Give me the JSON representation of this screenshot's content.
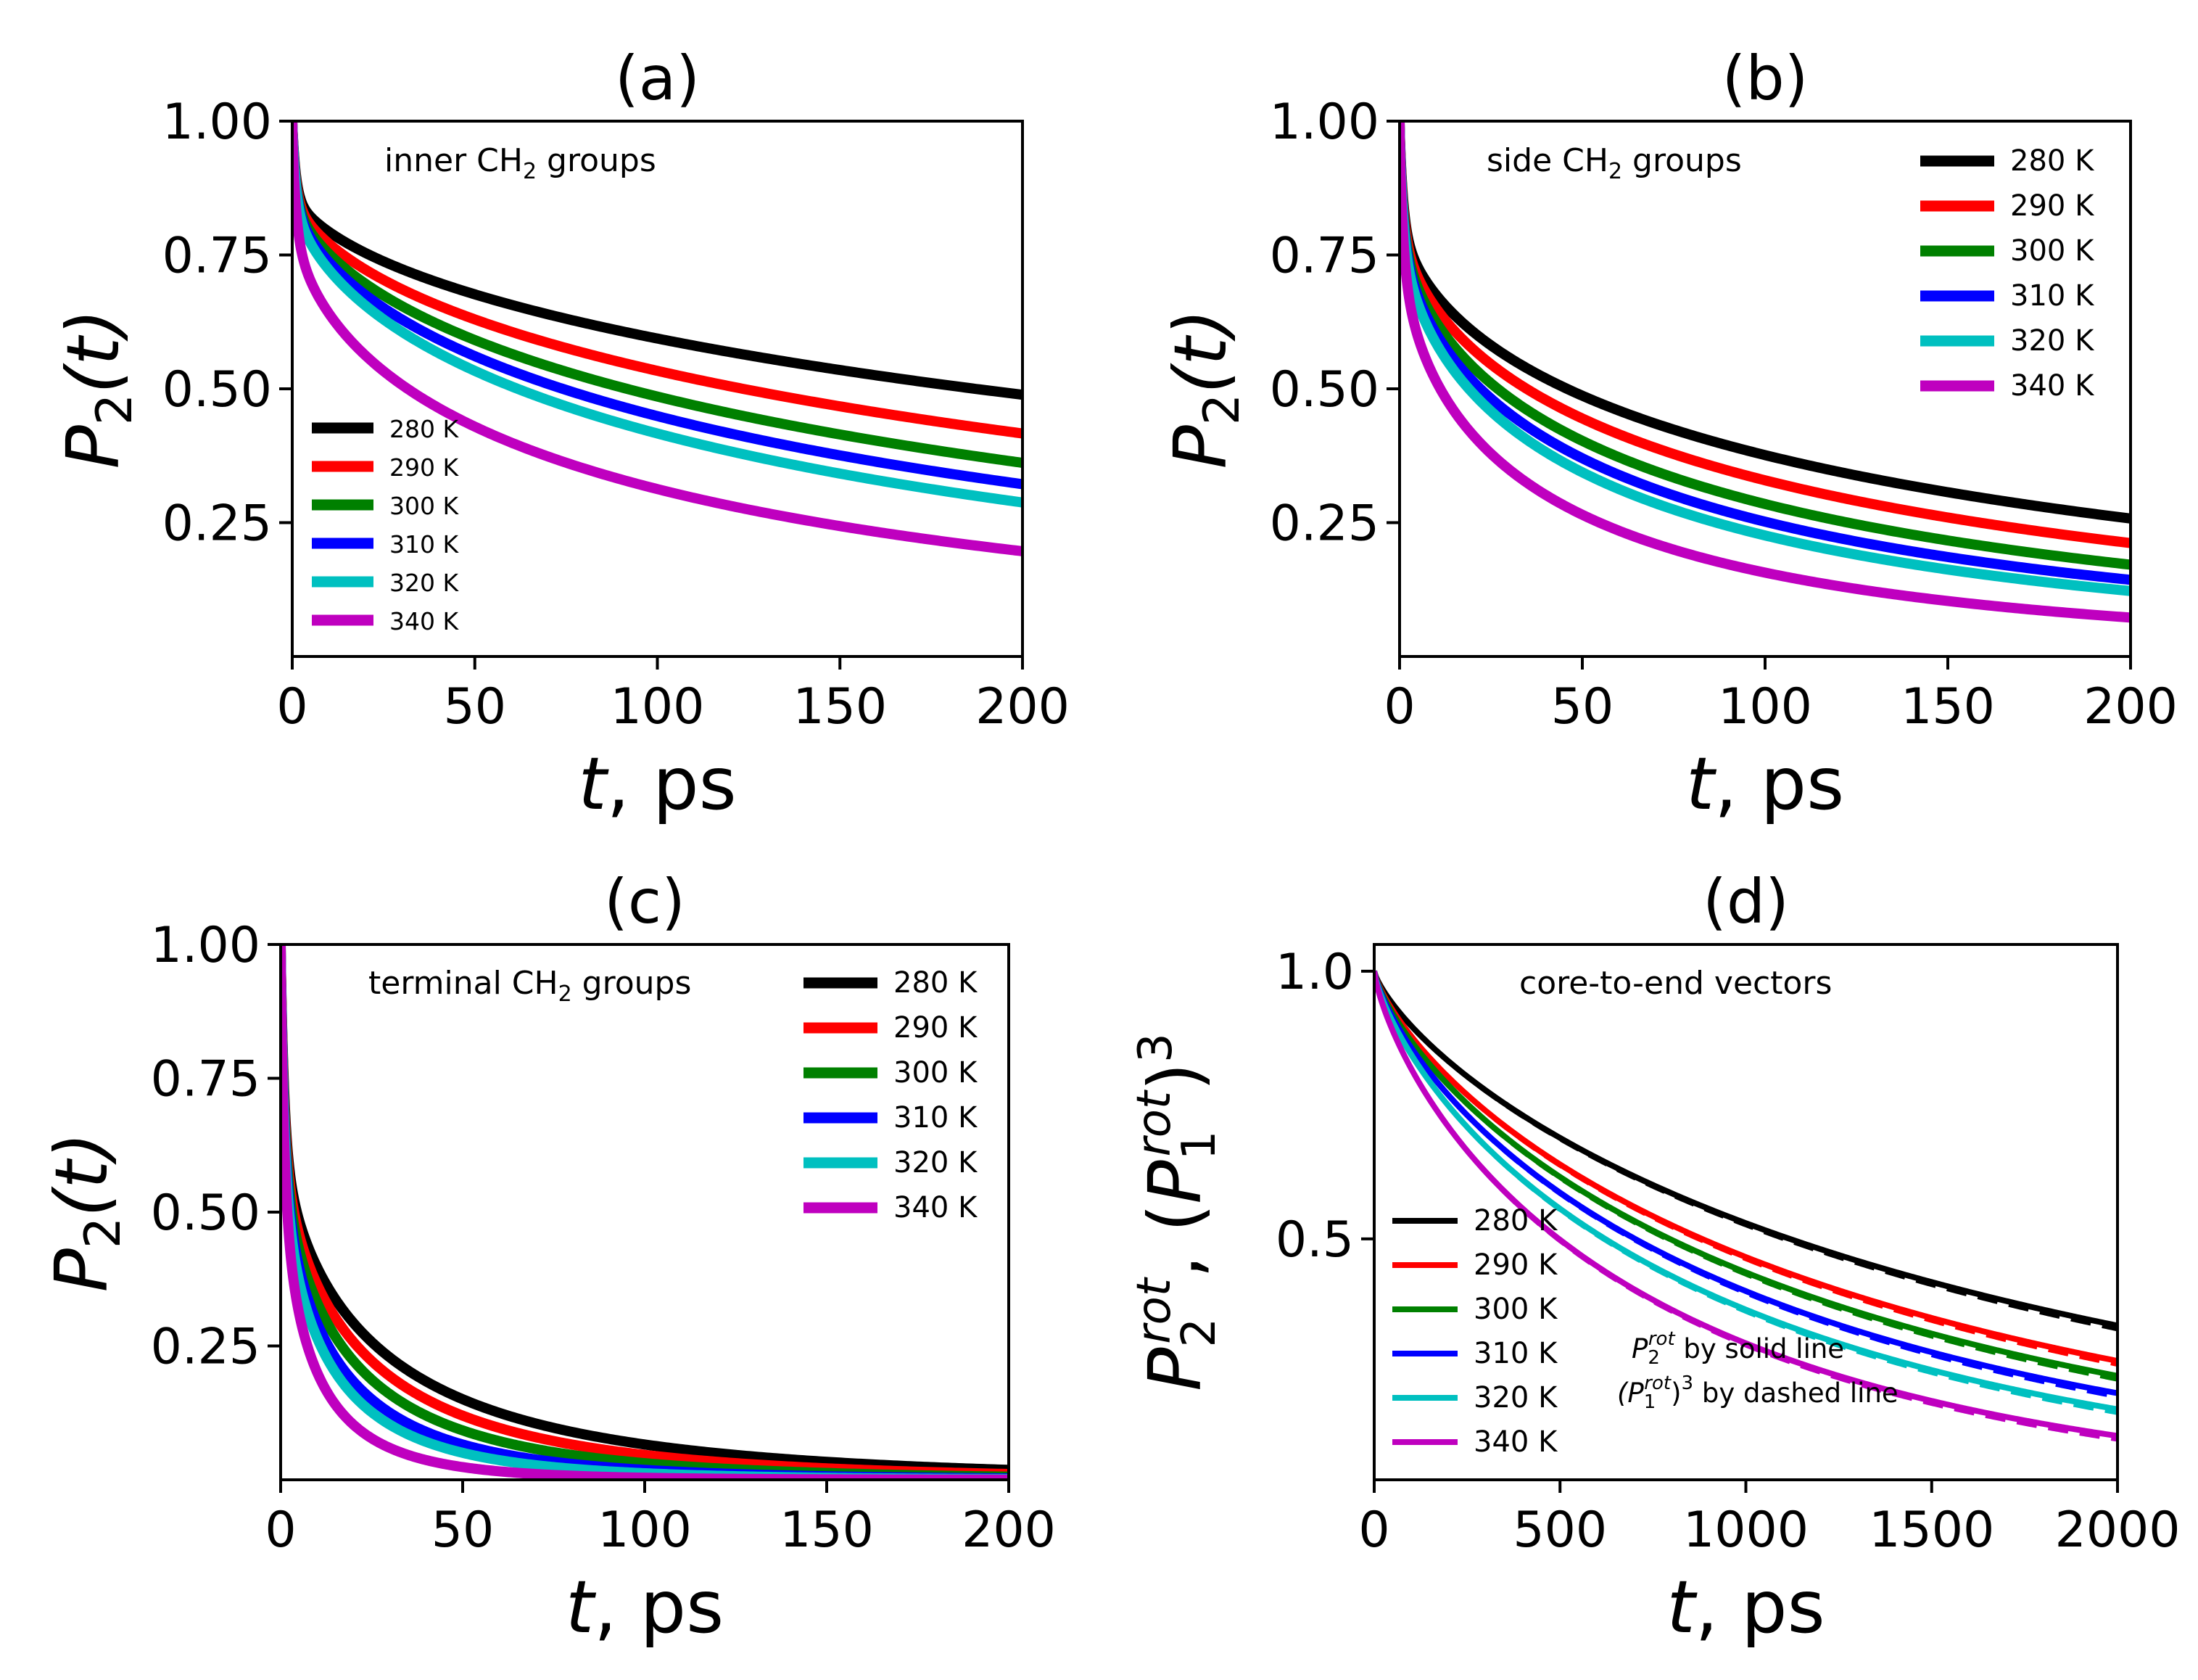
{
  "chart_data": [
    {
      "type": "line",
      "panel": "(a)",
      "title": "(a)",
      "annotation": {
        "prefix": "inner CH",
        "sub": "2",
        "suffix": " groups"
      },
      "xlabel": {
        "var": "t",
        "rest": ", ps"
      },
      "ylabel": {
        "main": "P",
        "sub": "2",
        "paren": "(t)"
      },
      "xlim": [
        0,
        200
      ],
      "ylim": [
        0.0,
        1.0
      ],
      "xticks": [
        0,
        50,
        100,
        150,
        200
      ],
      "xtick_labels": [
        "0",
        "50",
        "100",
        "150",
        "200"
      ],
      "yticks": [
        0.25,
        0.5,
        0.75,
        1.0
      ],
      "ytick_labels": [
        "0.25",
        "0.50",
        "0.75",
        "1.00"
      ],
      "legend_position": "lower-left",
      "series": [
        {
          "name": "280 K",
          "color": "#000000",
          "model": {
            "a": 0.12,
            "ta": 1.0,
            "b": 0.88,
            "tb": 500,
            "beta": 0.58
          }
        },
        {
          "name": "290 K",
          "color": "#ff0000",
          "model": {
            "a": 0.12,
            "ta": 1.0,
            "b": 0.88,
            "tb": 330,
            "beta": 0.58
          }
        },
        {
          "name": "300 K",
          "color": "#008000",
          "model": {
            "a": 0.12,
            "ta": 1.0,
            "b": 0.88,
            "tb": 245,
            "beta": 0.58
          }
        },
        {
          "name": "310 K",
          "color": "#0000ff",
          "model": {
            "a": 0.12,
            "ta": 1.0,
            "b": 0.88,
            "tb": 198,
            "beta": 0.58
          }
        },
        {
          "name": "320 K",
          "color": "#00c0c0",
          "model": {
            "a": 0.12,
            "ta": 1.0,
            "b": 0.88,
            "tb": 165,
            "beta": 0.58
          }
        },
        {
          "name": "340 K",
          "color": "#bf00bf",
          "model": {
            "a": 0.15,
            "ta": 1.0,
            "b": 0.85,
            "tb": 100,
            "beta": 0.55
          }
        }
      ]
    },
    {
      "type": "line",
      "panel": "(b)",
      "title": "(b)",
      "annotation": {
        "prefix": "side CH",
        "sub": "2",
        "suffix": " groups"
      },
      "xlabel": {
        "var": "t",
        "rest": ", ps"
      },
      "ylabel": {
        "main": "P",
        "sub": "2",
        "paren": "(t)"
      },
      "xlim": [
        0,
        200
      ],
      "ylim": [
        0.0,
        1.0
      ],
      "xticks": [
        0,
        50,
        100,
        150,
        200
      ],
      "xtick_labels": [
        "0",
        "50",
        "100",
        "150",
        "200"
      ],
      "yticks": [
        0.25,
        0.5,
        0.75,
        1.0
      ],
      "ytick_labels": [
        "0.25",
        "0.50",
        "0.75",
        "1.00"
      ],
      "legend_position": "upper-right",
      "series": [
        {
          "name": "280 K",
          "color": "#000000",
          "model": {
            "a": 0.15,
            "ta": 1.0,
            "b": 0.85,
            "tb": 145,
            "beta": 0.55
          }
        },
        {
          "name": "290 K",
          "color": "#ff0000",
          "model": {
            "a": 0.15,
            "ta": 1.0,
            "b": 0.85,
            "tb": 110,
            "beta": 0.55
          }
        },
        {
          "name": "300 K",
          "color": "#008000",
          "model": {
            "a": 0.15,
            "ta": 1.0,
            "b": 0.85,
            "tb": 85,
            "beta": 0.55
          }
        },
        {
          "name": "310 K",
          "color": "#0000ff",
          "model": {
            "a": 0.15,
            "ta": 1.0,
            "b": 0.85,
            "tb": 70,
            "beta": 0.55
          }
        },
        {
          "name": "320 K",
          "color": "#00c0c0",
          "model": {
            "a": 0.15,
            "ta": 1.0,
            "b": 0.85,
            "tb": 60,
            "beta": 0.55
          }
        },
        {
          "name": "340 K",
          "color": "#bf00bf",
          "model": {
            "a": 0.18,
            "ta": 1.0,
            "b": 0.82,
            "tb": 40,
            "beta": 0.55
          }
        }
      ]
    },
    {
      "type": "line",
      "panel": "(c)",
      "title": "(c)",
      "annotation": {
        "prefix": "terminal CH",
        "sub": "2",
        "suffix": " groups"
      },
      "xlabel": {
        "var": "t",
        "rest": ", ps"
      },
      "ylabel": {
        "main": "P",
        "sub": "2",
        "paren": "(t)"
      },
      "xlim": [
        0,
        200
      ],
      "ylim": [
        0.0,
        1.0
      ],
      "xticks": [
        0,
        50,
        100,
        150,
        200
      ],
      "xtick_labels": [
        "0",
        "50",
        "100",
        "150",
        "200"
      ],
      "yticks": [
        0.25,
        0.5,
        0.75,
        1.0
      ],
      "ytick_labels": [
        "0.25",
        "0.50",
        "0.75",
        "1.00"
      ],
      "legend_position": "upper-right",
      "series": [
        {
          "name": "280 K",
          "color": "#000000",
          "model": {
            "a": 0.3,
            "ta": 1.0,
            "b": 0.7,
            "tb": 25,
            "beta": 0.62
          }
        },
        {
          "name": "290 K",
          "color": "#ff0000",
          "model": {
            "a": 0.3,
            "ta": 1.0,
            "b": 0.7,
            "tb": 20,
            "beta": 0.62
          }
        },
        {
          "name": "300 K",
          "color": "#008000",
          "model": {
            "a": 0.3,
            "ta": 1.0,
            "b": 0.7,
            "tb": 16,
            "beta": 0.62
          }
        },
        {
          "name": "310 K",
          "color": "#0000ff",
          "model": {
            "a": 0.3,
            "ta": 1.0,
            "b": 0.7,
            "tb": 12.5,
            "beta": 0.62
          }
        },
        {
          "name": "320 K",
          "color": "#00c0c0",
          "model": {
            "a": 0.3,
            "ta": 1.0,
            "b": 0.7,
            "tb": 10.5,
            "beta": 0.62
          }
        },
        {
          "name": "340 K",
          "color": "#bf00bf",
          "model": {
            "a": 0.3,
            "ta": 1.0,
            "b": 0.7,
            "tb": 7.0,
            "beta": 0.62
          }
        }
      ]
    },
    {
      "type": "line",
      "panel": "(d)",
      "title": "(d)",
      "annotation": {
        "prefix": "core-to-end vectors",
        "sub": "",
        "suffix": ""
      },
      "xlabel": {
        "var": "t",
        "rest": ", ps"
      },
      "ylabel": {
        "p2": "P",
        "p2sup": "rot",
        "p2sub": "2",
        "sep": ", (",
        "p1": "P",
        "p1sup": "rot",
        "p1sub": "1",
        "close": ")",
        "pow": "3"
      },
      "xlim": [
        0,
        2000
      ],
      "ylim": [
        0.05,
        1.05
      ],
      "xticks": [
        0,
        500,
        1000,
        1500,
        2000
      ],
      "xtick_labels": [
        "0",
        "500",
        "1000",
        "1500",
        "2000"
      ],
      "yticks": [
        0.5,
        1.0
      ],
      "ytick_labels": [
        "0.5",
        "1.0"
      ],
      "legend_position": "lower-left",
      "notes": {
        "solid": {
          "main": "P",
          "sup": "rot",
          "sub": "2",
          "rest": " by solid line"
        },
        "dashed": {
          "open": "(P",
          "sup": "rot",
          "sub": "1",
          "close": ")",
          "pow": "3",
          "rest": " by dashed line"
        }
      },
      "series": [
        {
          "name": "280 K",
          "color": "#000000",
          "model": {
            "tau": 1800,
            "beta": 0.77
          },
          "dash_offset": 0.006
        },
        {
          "name": "290 K",
          "color": "#ff0000",
          "model": {
            "tau": 1420,
            "beta": 0.77
          },
          "dash_offset": 0.006
        },
        {
          "name": "300 K",
          "color": "#008000",
          "model": {
            "tau": 1280,
            "beta": 0.77
          },
          "dash_offset": 0.006
        },
        {
          "name": "310 K",
          "color": "#0000ff",
          "model": {
            "tau": 1130,
            "beta": 0.77
          },
          "dash_offset": 0.006
        },
        {
          "name": "320 K",
          "color": "#00c0c0",
          "model": {
            "tau": 1000,
            "beta": 0.77
          },
          "dash_offset": 0.006
        },
        {
          "name": "340 K",
          "color": "#bf00bf",
          "model": {
            "tau": 800,
            "beta": 0.77
          },
          "dash_offset": 0.006
        }
      ]
    }
  ]
}
